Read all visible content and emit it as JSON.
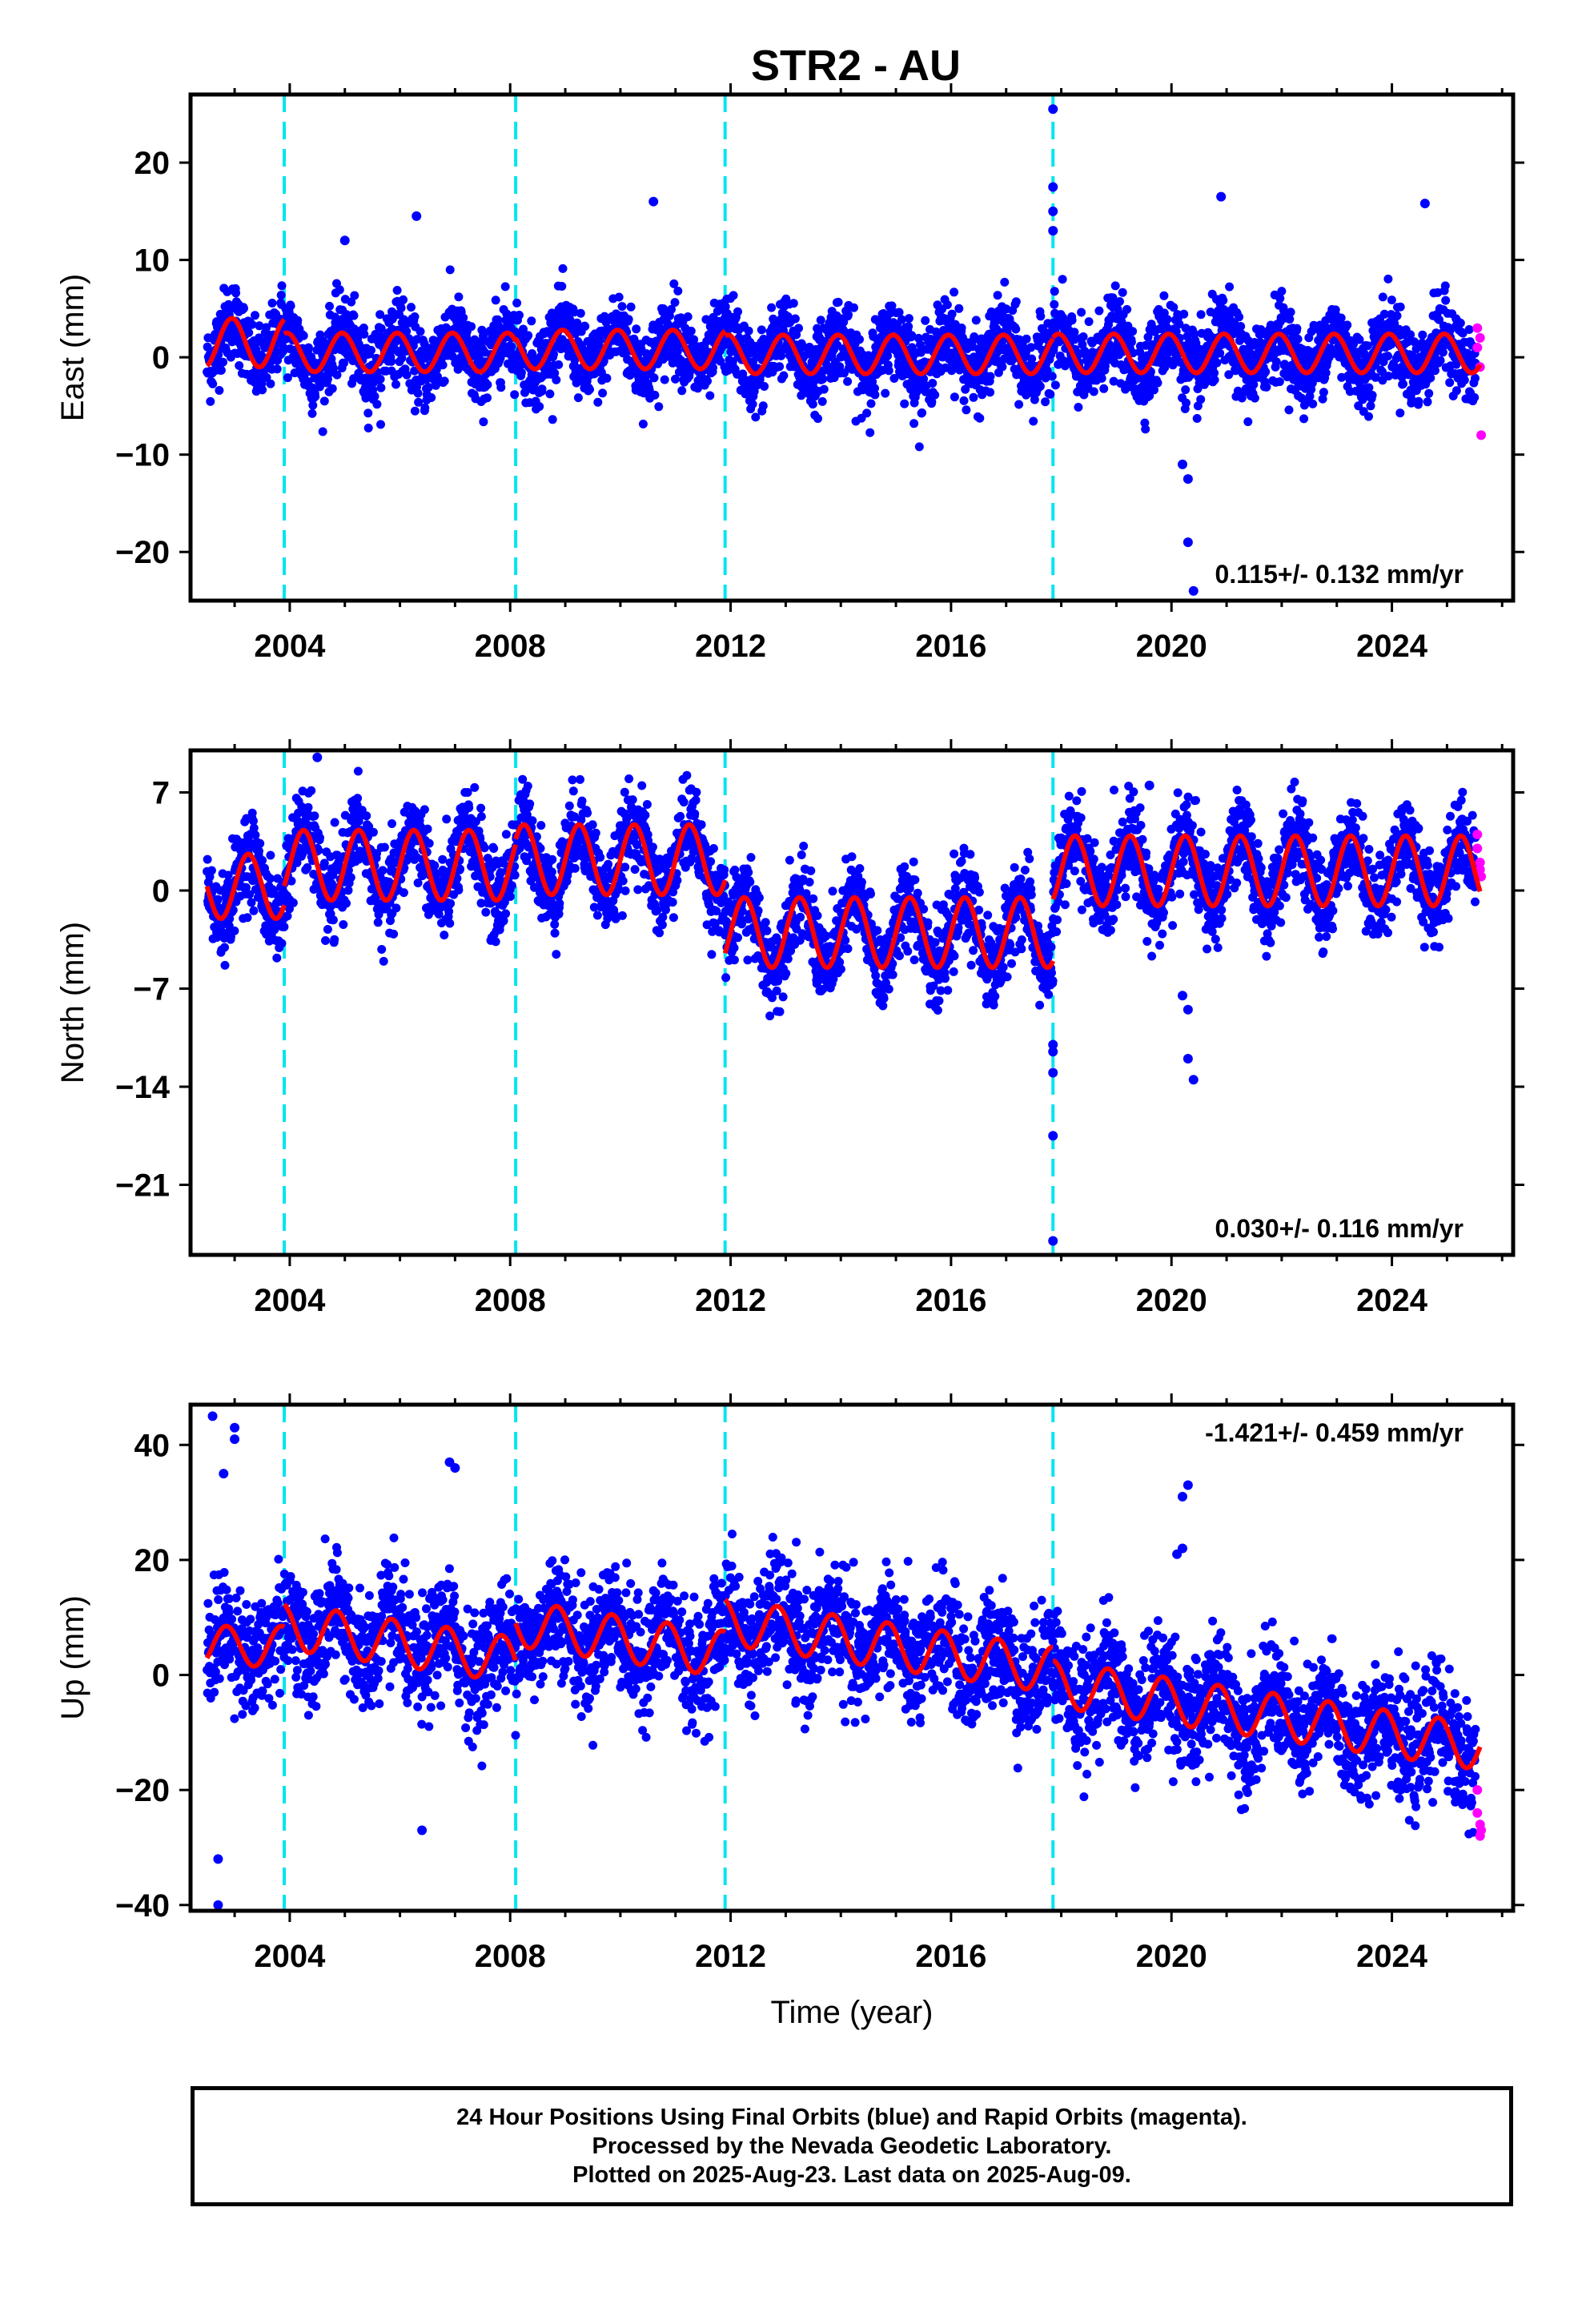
{
  "title": "STR2 - AU",
  "colors": {
    "final_orbits": "#0000ff",
    "rapid_orbits": "#ff00ff",
    "model": "#ff0000",
    "offsets": "#00e5ee",
    "frame": "#000000"
  },
  "footer": {
    "line1": "24 Hour Positions Using Final Orbits (blue) and Rapid Orbits (magenta).",
    "line2": "Processed by the Nevada Geodetic Laboratory.",
    "line3": "Plotted on 2025-Aug-23. Last data on 2025-Aug-09."
  },
  "chart_data": [
    {
      "type": "scatter",
      "component": "East",
      "ylabel": "East (mm)",
      "xlabel": "",
      "rate_label": "0.115+/- 0.132 mm/yr",
      "rate_position": "bottom-right",
      "xlim": [
        2002.2,
        2026.2
      ],
      "ylim": [
        -25,
        27
      ],
      "xticks": [
        2004,
        2008,
        2012,
        2016,
        2020,
        2024
      ],
      "yticks": [
        -20,
        -10,
        0,
        10,
        20
      ],
      "ytick_labels": [
        "−20",
        "−10",
        "0",
        "10",
        "20"
      ],
      "data_span": [
        2002.5,
        2025.6
      ],
      "offset_epochs": [
        2003.9,
        2008.1,
        2011.9,
        2017.85
      ],
      "series": [
        {
          "name": "Final Orbits",
          "approx_scatter_sd_mm": 2.0,
          "outliers": [
            [
              2017.85,
              25.5
            ],
            [
              2017.85,
              17.5
            ],
            [
              2017.85,
              15
            ],
            [
              2017.85,
              13
            ],
            [
              2020.2,
              -11
            ],
            [
              2020.3,
              -12.5
            ],
            [
              2020.3,
              -19
            ],
            [
              2020.4,
              -24
            ],
            [
              2020.9,
              16.5
            ],
            [
              2010.6,
              16
            ],
            [
              2024.6,
              15.8
            ],
            [
              2006.3,
              14.5
            ],
            [
              2005.0,
              12
            ]
          ]
        },
        {
          "name": "Rapid Orbits",
          "points": [
            [
              2025.55,
              3
            ],
            [
              2025.55,
              1
            ],
            [
              2025.6,
              -1
            ],
            [
              2025.6,
              2
            ],
            [
              2025.62,
              -8
            ]
          ]
        }
      ],
      "model": {
        "name": "Fit",
        "segments": [
          {
            "from": 2002.5,
            "to": 2003.9,
            "base": 1.5,
            "amp": 2.5,
            "phase": 0.3,
            "trend": 0
          },
          {
            "from": 2003.9,
            "to": 2008.1,
            "base": 0.5,
            "amp": 2.0,
            "phase": 0.3,
            "trend": 0
          },
          {
            "from": 2008.1,
            "to": 2011.9,
            "base": 0.8,
            "amp": 2.0,
            "phase": 0.3,
            "trend": 0
          },
          {
            "from": 2011.9,
            "to": 2017.85,
            "base": 0.3,
            "amp": 2.0,
            "phase": 0.3,
            "trend": 0
          },
          {
            "from": 2017.85,
            "to": 2025.6,
            "base": 0.4,
            "amp": 2.0,
            "phase": 0.3,
            "trend": 0
          }
        ]
      }
    },
    {
      "type": "scatter",
      "component": "North",
      "ylabel": "North (mm)",
      "xlabel": "",
      "rate_label": "0.030+/- 0.116 mm/yr",
      "rate_position": "bottom-right",
      "xlim": [
        2002.2,
        2026.2
      ],
      "ylim": [
        -26,
        10
      ],
      "xticks": [
        2004,
        2008,
        2012,
        2016,
        2020,
        2024
      ],
      "yticks": [
        -21,
        -14,
        -7,
        0,
        7
      ],
      "ytick_labels": [
        "−21",
        "−14",
        "−7",
        "0",
        "7"
      ],
      "data_span": [
        2002.5,
        2025.6
      ],
      "offset_epochs": [
        2003.9,
        2008.1,
        2011.9,
        2017.85
      ],
      "series": [
        {
          "name": "Final Orbits",
          "approx_scatter_sd_mm": 1.5,
          "outliers": [
            [
              2017.85,
              -11
            ],
            [
              2017.85,
              -11.5
            ],
            [
              2017.85,
              -13
            ],
            [
              2017.85,
              -17.5
            ],
            [
              2017.85,
              -25
            ],
            [
              2020.2,
              -7.5
            ],
            [
              2020.3,
              -8.5
            ],
            [
              2020.3,
              -12
            ],
            [
              2020.4,
              -13.5
            ],
            [
              2004.5,
              9.5
            ],
            [
              2019.6,
              7.5
            ]
          ]
        },
        {
          "name": "Rapid Orbits",
          "points": [
            [
              2025.55,
              4
            ],
            [
              2025.55,
              3
            ],
            [
              2025.6,
              2
            ],
            [
              2025.6,
              1.5
            ],
            [
              2025.62,
              1
            ]
          ]
        }
      ],
      "model": {
        "name": "Fit",
        "segments": [
          {
            "from": 2002.5,
            "to": 2003.9,
            "base": 0.3,
            "amp": 2.3,
            "phase": 0.0,
            "trend": 0
          },
          {
            "from": 2003.9,
            "to": 2008.1,
            "base": 1.8,
            "amp": 2.5,
            "phase": 0.0,
            "trend": 0
          },
          {
            "from": 2008.1,
            "to": 2011.9,
            "base": 2.2,
            "amp": 2.5,
            "phase": 0.0,
            "trend": 0
          },
          {
            "from": 2011.9,
            "to": 2017.85,
            "base": -3.0,
            "amp": 2.5,
            "phase": 0.0,
            "trend": 0
          },
          {
            "from": 2017.85,
            "to": 2025.6,
            "base": 1.4,
            "amp": 2.5,
            "phase": 0.0,
            "trend": 0
          }
        ]
      }
    },
    {
      "type": "scatter",
      "component": "Up",
      "ylabel": "Up (mm)",
      "xlabel": "Time (year)",
      "rate_label": "-1.421+/- 0.459 mm/yr",
      "rate_position": "top-right",
      "xlim": [
        2002.2,
        2026.2
      ],
      "ylim": [
        -41,
        47
      ],
      "xticks": [
        2004,
        2008,
        2012,
        2016,
        2020,
        2024
      ],
      "yticks": [
        -40,
        -20,
        0,
        20,
        40
      ],
      "ytick_labels": [
        "−40",
        "−20",
        "0",
        "20",
        "40"
      ],
      "data_span": [
        2002.5,
        2025.6
      ],
      "offset_epochs": [
        2003.9,
        2008.1,
        2011.9,
        2017.85
      ],
      "series": [
        {
          "name": "Final Orbits",
          "approx_scatter_sd_mm": 5.0,
          "outliers": [
            [
              2002.6,
              45
            ],
            [
              2002.7,
              -40
            ],
            [
              2003.0,
              43
            ],
            [
              2003.0,
              41
            ],
            [
              2002.8,
              35
            ],
            [
              2002.7,
              -32
            ],
            [
              2006.9,
              37
            ],
            [
              2007.0,
              36
            ],
            [
              2006.4,
              -27
            ],
            [
              2020.3,
              33
            ],
            [
              2020.2,
              31
            ],
            [
              2020.1,
              21
            ],
            [
              2020.2,
              22
            ]
          ]
        },
        {
          "name": "Rapid Orbits",
          "points": [
            [
              2025.55,
              -20
            ],
            [
              2025.55,
              -24
            ],
            [
              2025.6,
              -26
            ],
            [
              2025.6,
              -28
            ],
            [
              2025.62,
              -27
            ]
          ]
        }
      ],
      "model": {
        "name": "Fit",
        "segments": [
          {
            "from": 2002.5,
            "to": 2003.9,
            "base": 5.0,
            "amp": 3.5,
            "phase": 0.4,
            "trend": 0
          },
          {
            "from": 2003.9,
            "to": 2008.1,
            "base": 8.5,
            "amp": 4.0,
            "phase": 0.4,
            "trend": -1.421
          },
          {
            "from": 2008.1,
            "to": 2011.9,
            "base": 9.0,
            "amp": 4.0,
            "phase": 0.4,
            "trend": -1.421
          },
          {
            "from": 2011.9,
            "to": 2017.85,
            "base": 9.3,
            "amp": 4.0,
            "phase": 0.4,
            "trend": -1.421
          },
          {
            "from": 2017.85,
            "to": 2025.6,
            "base": -1.5,
            "amp": 4.0,
            "phase": 0.4,
            "trend": -1.421
          }
        ]
      }
    }
  ]
}
